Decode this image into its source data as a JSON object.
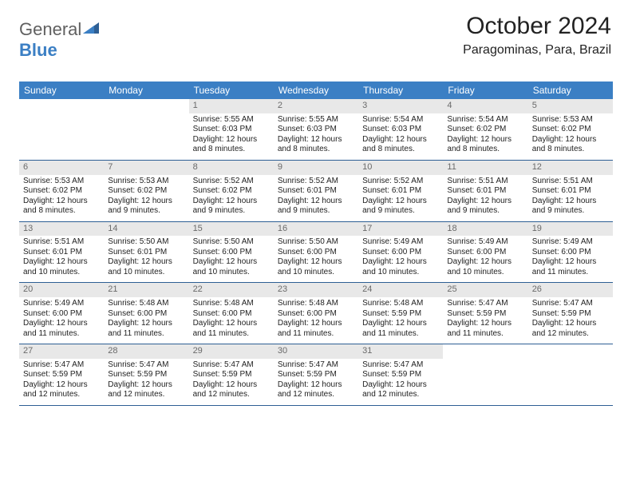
{
  "logo": {
    "part1": "General",
    "part2": "Blue"
  },
  "title": "October 2024",
  "location": "Paragominas, Para, Brazil",
  "colors": {
    "header_bg": "#3b7fc4",
    "daynum_bg": "#e8e8e8",
    "daynum_fg": "#6a6a6a",
    "row_border": "#2e5f94"
  },
  "day_names": [
    "Sunday",
    "Monday",
    "Tuesday",
    "Wednesday",
    "Thursday",
    "Friday",
    "Saturday"
  ],
  "weeks": [
    [
      {
        "n": "",
        "sr": "",
        "ss": "",
        "dl": ""
      },
      {
        "n": "",
        "sr": "",
        "ss": "",
        "dl": ""
      },
      {
        "n": "1",
        "sr": "Sunrise: 5:55 AM",
        "ss": "Sunset: 6:03 PM",
        "dl": "Daylight: 12 hours and 8 minutes."
      },
      {
        "n": "2",
        "sr": "Sunrise: 5:55 AM",
        "ss": "Sunset: 6:03 PM",
        "dl": "Daylight: 12 hours and 8 minutes."
      },
      {
        "n": "3",
        "sr": "Sunrise: 5:54 AM",
        "ss": "Sunset: 6:03 PM",
        "dl": "Daylight: 12 hours and 8 minutes."
      },
      {
        "n": "4",
        "sr": "Sunrise: 5:54 AM",
        "ss": "Sunset: 6:02 PM",
        "dl": "Daylight: 12 hours and 8 minutes."
      },
      {
        "n": "5",
        "sr": "Sunrise: 5:53 AM",
        "ss": "Sunset: 6:02 PM",
        "dl": "Daylight: 12 hours and 8 minutes."
      }
    ],
    [
      {
        "n": "6",
        "sr": "Sunrise: 5:53 AM",
        "ss": "Sunset: 6:02 PM",
        "dl": "Daylight: 12 hours and 8 minutes."
      },
      {
        "n": "7",
        "sr": "Sunrise: 5:53 AM",
        "ss": "Sunset: 6:02 PM",
        "dl": "Daylight: 12 hours and 9 minutes."
      },
      {
        "n": "8",
        "sr": "Sunrise: 5:52 AM",
        "ss": "Sunset: 6:02 PM",
        "dl": "Daylight: 12 hours and 9 minutes."
      },
      {
        "n": "9",
        "sr": "Sunrise: 5:52 AM",
        "ss": "Sunset: 6:01 PM",
        "dl": "Daylight: 12 hours and 9 minutes."
      },
      {
        "n": "10",
        "sr": "Sunrise: 5:52 AM",
        "ss": "Sunset: 6:01 PM",
        "dl": "Daylight: 12 hours and 9 minutes."
      },
      {
        "n": "11",
        "sr": "Sunrise: 5:51 AM",
        "ss": "Sunset: 6:01 PM",
        "dl": "Daylight: 12 hours and 9 minutes."
      },
      {
        "n": "12",
        "sr": "Sunrise: 5:51 AM",
        "ss": "Sunset: 6:01 PM",
        "dl": "Daylight: 12 hours and 9 minutes."
      }
    ],
    [
      {
        "n": "13",
        "sr": "Sunrise: 5:51 AM",
        "ss": "Sunset: 6:01 PM",
        "dl": "Daylight: 12 hours and 10 minutes."
      },
      {
        "n": "14",
        "sr": "Sunrise: 5:50 AM",
        "ss": "Sunset: 6:01 PM",
        "dl": "Daylight: 12 hours and 10 minutes."
      },
      {
        "n": "15",
        "sr": "Sunrise: 5:50 AM",
        "ss": "Sunset: 6:00 PM",
        "dl": "Daylight: 12 hours and 10 minutes."
      },
      {
        "n": "16",
        "sr": "Sunrise: 5:50 AM",
        "ss": "Sunset: 6:00 PM",
        "dl": "Daylight: 12 hours and 10 minutes."
      },
      {
        "n": "17",
        "sr": "Sunrise: 5:49 AM",
        "ss": "Sunset: 6:00 PM",
        "dl": "Daylight: 12 hours and 10 minutes."
      },
      {
        "n": "18",
        "sr": "Sunrise: 5:49 AM",
        "ss": "Sunset: 6:00 PM",
        "dl": "Daylight: 12 hours and 10 minutes."
      },
      {
        "n": "19",
        "sr": "Sunrise: 5:49 AM",
        "ss": "Sunset: 6:00 PM",
        "dl": "Daylight: 12 hours and 11 minutes."
      }
    ],
    [
      {
        "n": "20",
        "sr": "Sunrise: 5:49 AM",
        "ss": "Sunset: 6:00 PM",
        "dl": "Daylight: 12 hours and 11 minutes."
      },
      {
        "n": "21",
        "sr": "Sunrise: 5:48 AM",
        "ss": "Sunset: 6:00 PM",
        "dl": "Daylight: 12 hours and 11 minutes."
      },
      {
        "n": "22",
        "sr": "Sunrise: 5:48 AM",
        "ss": "Sunset: 6:00 PM",
        "dl": "Daylight: 12 hours and 11 minutes."
      },
      {
        "n": "23",
        "sr": "Sunrise: 5:48 AM",
        "ss": "Sunset: 6:00 PM",
        "dl": "Daylight: 12 hours and 11 minutes."
      },
      {
        "n": "24",
        "sr": "Sunrise: 5:48 AM",
        "ss": "Sunset: 5:59 PM",
        "dl": "Daylight: 12 hours and 11 minutes."
      },
      {
        "n": "25",
        "sr": "Sunrise: 5:47 AM",
        "ss": "Sunset: 5:59 PM",
        "dl": "Daylight: 12 hours and 11 minutes."
      },
      {
        "n": "26",
        "sr": "Sunrise: 5:47 AM",
        "ss": "Sunset: 5:59 PM",
        "dl": "Daylight: 12 hours and 12 minutes."
      }
    ],
    [
      {
        "n": "27",
        "sr": "Sunrise: 5:47 AM",
        "ss": "Sunset: 5:59 PM",
        "dl": "Daylight: 12 hours and 12 minutes."
      },
      {
        "n": "28",
        "sr": "Sunrise: 5:47 AM",
        "ss": "Sunset: 5:59 PM",
        "dl": "Daylight: 12 hours and 12 minutes."
      },
      {
        "n": "29",
        "sr": "Sunrise: 5:47 AM",
        "ss": "Sunset: 5:59 PM",
        "dl": "Daylight: 12 hours and 12 minutes."
      },
      {
        "n": "30",
        "sr": "Sunrise: 5:47 AM",
        "ss": "Sunset: 5:59 PM",
        "dl": "Daylight: 12 hours and 12 minutes."
      },
      {
        "n": "31",
        "sr": "Sunrise: 5:47 AM",
        "ss": "Sunset: 5:59 PM",
        "dl": "Daylight: 12 hours and 12 minutes."
      },
      {
        "n": "",
        "sr": "",
        "ss": "",
        "dl": ""
      },
      {
        "n": "",
        "sr": "",
        "ss": "",
        "dl": ""
      }
    ]
  ]
}
